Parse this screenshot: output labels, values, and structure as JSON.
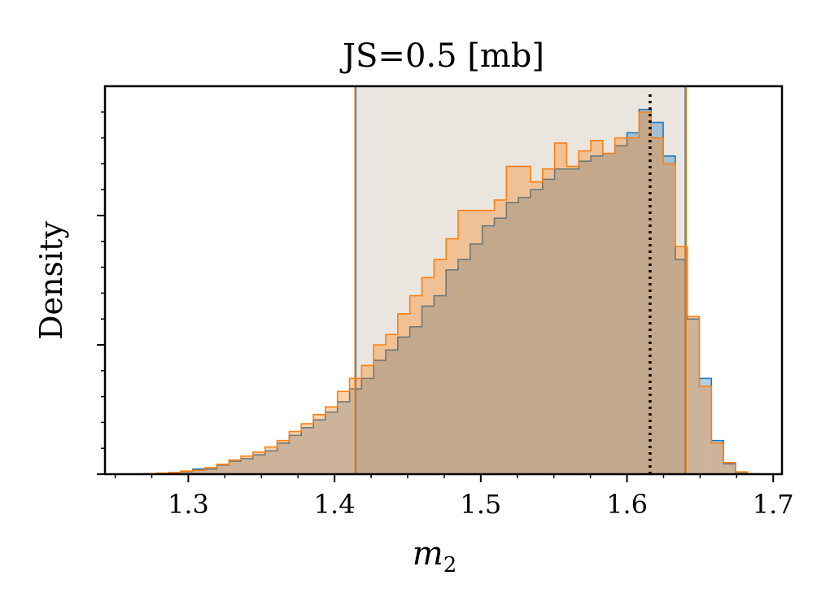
{
  "chart_data": {
    "type": "histogram",
    "title": "JS=0.5 [mb]",
    "xlabel": "m",
    "xlabel_subscript": "2",
    "ylabel": "Density",
    "xlim": [
      1.243,
      1.706
    ],
    "ylim": [
      0,
      15
    ],
    "grid": false,
    "legend": "none",
    "xticks": [
      {
        "value": 1.3,
        "label": "1.3"
      },
      {
        "value": 1.4,
        "label": "1.4"
      },
      {
        "value": 1.5,
        "label": "1.5"
      },
      {
        "value": 1.6,
        "label": "1.6"
      },
      {
        "value": 1.7,
        "label": "1.7"
      }
    ],
    "yticks_major": [
      0,
      5,
      10
    ],
    "yticks_minor": [
      1,
      2,
      3,
      4,
      6,
      7,
      8,
      9,
      11,
      12,
      13,
      14
    ],
    "bins": {
      "start": 1.27,
      "width": 0.00825,
      "count": 51
    },
    "series": [
      {
        "color": "#1f77b4",
        "values": [
          0.02,
          0.02,
          0.05,
          0.1,
          0.2,
          0.2,
          0.35,
          0.5,
          0.6,
          0.75,
          0.9,
          1.2,
          1.5,
          1.8,
          2.1,
          2.4,
          2.8,
          3.3,
          3.7,
          4.4,
          4.8,
          5.3,
          5.7,
          6.5,
          6.9,
          7.9,
          8.3,
          8.9,
          9.6,
          9.9,
          10.5,
          10.7,
          11.0,
          11.4,
          11.8,
          11.8,
          12.1,
          12.3,
          12.4,
          12.7,
          13.2,
          14.1,
          13.6,
          12.3,
          8.3,
          6.0,
          3.7,
          1.3,
          0.4,
          0.07,
          0.02
        ],
        "ci_low": 1.4146,
        "ci_high": 1.6398
      },
      {
        "color": "#ff7f0e",
        "values": [
          0.02,
          0.04,
          0.07,
          0.12,
          0.15,
          0.25,
          0.38,
          0.55,
          0.7,
          0.85,
          1.05,
          1.3,
          1.65,
          1.95,
          2.3,
          2.6,
          3.2,
          3.7,
          4.2,
          5.0,
          5.4,
          6.2,
          6.9,
          7.6,
          8.3,
          9.1,
          10.2,
          10.2,
          10.2,
          10.6,
          11.9,
          11.9,
          11.3,
          11.8,
          12.8,
          11.9,
          12.5,
          12.9,
          12.4,
          13.0,
          13.0,
          14.0,
          13.0,
          12.0,
          8.8,
          6.1,
          3.4,
          1.2,
          0.45,
          0.09,
          0.02
        ],
        "ci_low": 1.4139,
        "ci_high": 1.6405
      }
    ],
    "shaded_interval": [
      1.4139,
      1.6405
    ],
    "reference_line": {
      "x": 1.6158,
      "style": "dotted",
      "color": "#000000"
    }
  }
}
